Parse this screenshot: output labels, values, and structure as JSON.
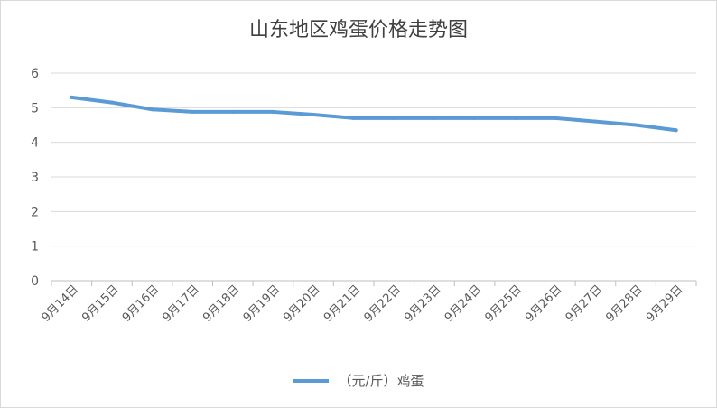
{
  "chart_data": {
    "type": "line",
    "title": "山东地区鸡蛋价格走势图",
    "categories": [
      "9月14日",
      "9月15日",
      "9月16日",
      "9月17日",
      "9月18日",
      "9月19日",
      "9月20日",
      "9月21日",
      "9月22日",
      "9月23日",
      "9月24日",
      "9月25日",
      "9月26日",
      "9月27日",
      "9月28日",
      "9月29日"
    ],
    "series": [
      {
        "name": "（元/斤）鸡蛋",
        "color": "#5b9bd5",
        "values": [
          5.3,
          5.15,
          4.95,
          4.88,
          4.88,
          4.88,
          4.8,
          4.7,
          4.7,
          4.7,
          4.7,
          4.7,
          4.7,
          4.6,
          4.5,
          4.35
        ]
      }
    ],
    "yticks": [
      0,
      1,
      2,
      3,
      4,
      5,
      6
    ],
    "ylim": [
      0,
      6
    ],
    "grid": true,
    "legend_position": "bottom"
  }
}
